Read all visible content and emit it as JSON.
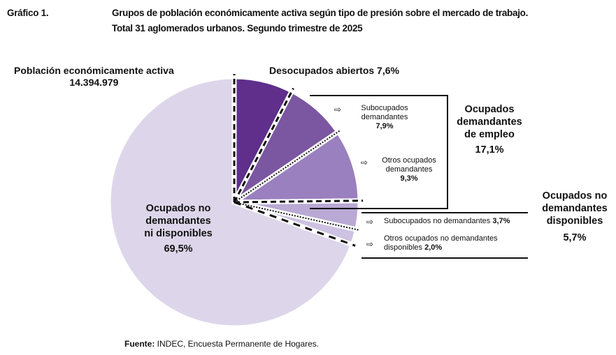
{
  "header": {
    "number": "Gráfico 1.",
    "title_line1": "Grupos de población económicamente activa según tipo de presión sobre el mercado de trabajo.",
    "title_line2": "Total 31 aglomerados urbanos. Segundo trimestre de 2025"
  },
  "pea": {
    "label": "Población económicamente activa",
    "value": "14.394.979"
  },
  "groups": {
    "desocupados": {
      "label": "Desocupados abiertos",
      "value": "7,6%"
    },
    "demandantes": {
      "label1": "Ocupados",
      "label2": "demandantes",
      "label3": "de empleo",
      "value": "17,1%"
    },
    "no_demandantes_disp": {
      "label1": "Ocupados no",
      "label2": "demandantes",
      "label3": "disponibles",
      "value": "5,7%"
    },
    "no_disp": {
      "label1": "Ocupados no",
      "label2": "demandantes",
      "label3": "ni disponibles",
      "value": "69,5%"
    }
  },
  "sublabels": {
    "sub_dem": {
      "l1": "Subocupados",
      "l2": "demandantes",
      "value": "7,9%"
    },
    "otros_dem": {
      "l1": "Otros ocupados",
      "l2": "demandantes",
      "value": "9,3%"
    },
    "sub_nodem": {
      "l1": "Subocupados no demandantes",
      "value": "3,7%"
    },
    "otros_nodem": {
      "l1": "Otros ocupados no demandantes",
      "l2": "disponibles",
      "value": "2,0%"
    }
  },
  "arrow_icon": "⇨",
  "chart_data": {
    "type": "pie",
    "categories": [
      "Desocupados abiertos",
      "Subocupados demandantes",
      "Otros ocupados demandantes",
      "Subocupados no demandantes",
      "Otros ocupados no demandantes disponibles",
      "Ocupados no demandantes ni disponibles"
    ],
    "values": [
      7.6,
      7.9,
      9.3,
      3.7,
      2.0,
      69.5
    ],
    "colors": [
      "#5f2f8b",
      "#7b56a1",
      "#9a80be",
      "#b9a9d4",
      "#cdc2e1",
      "#ddd6ea"
    ]
  },
  "footer": {
    "bold": "Fuente:",
    "text": " INDEC, Encuesta Permanente de Hogares."
  }
}
